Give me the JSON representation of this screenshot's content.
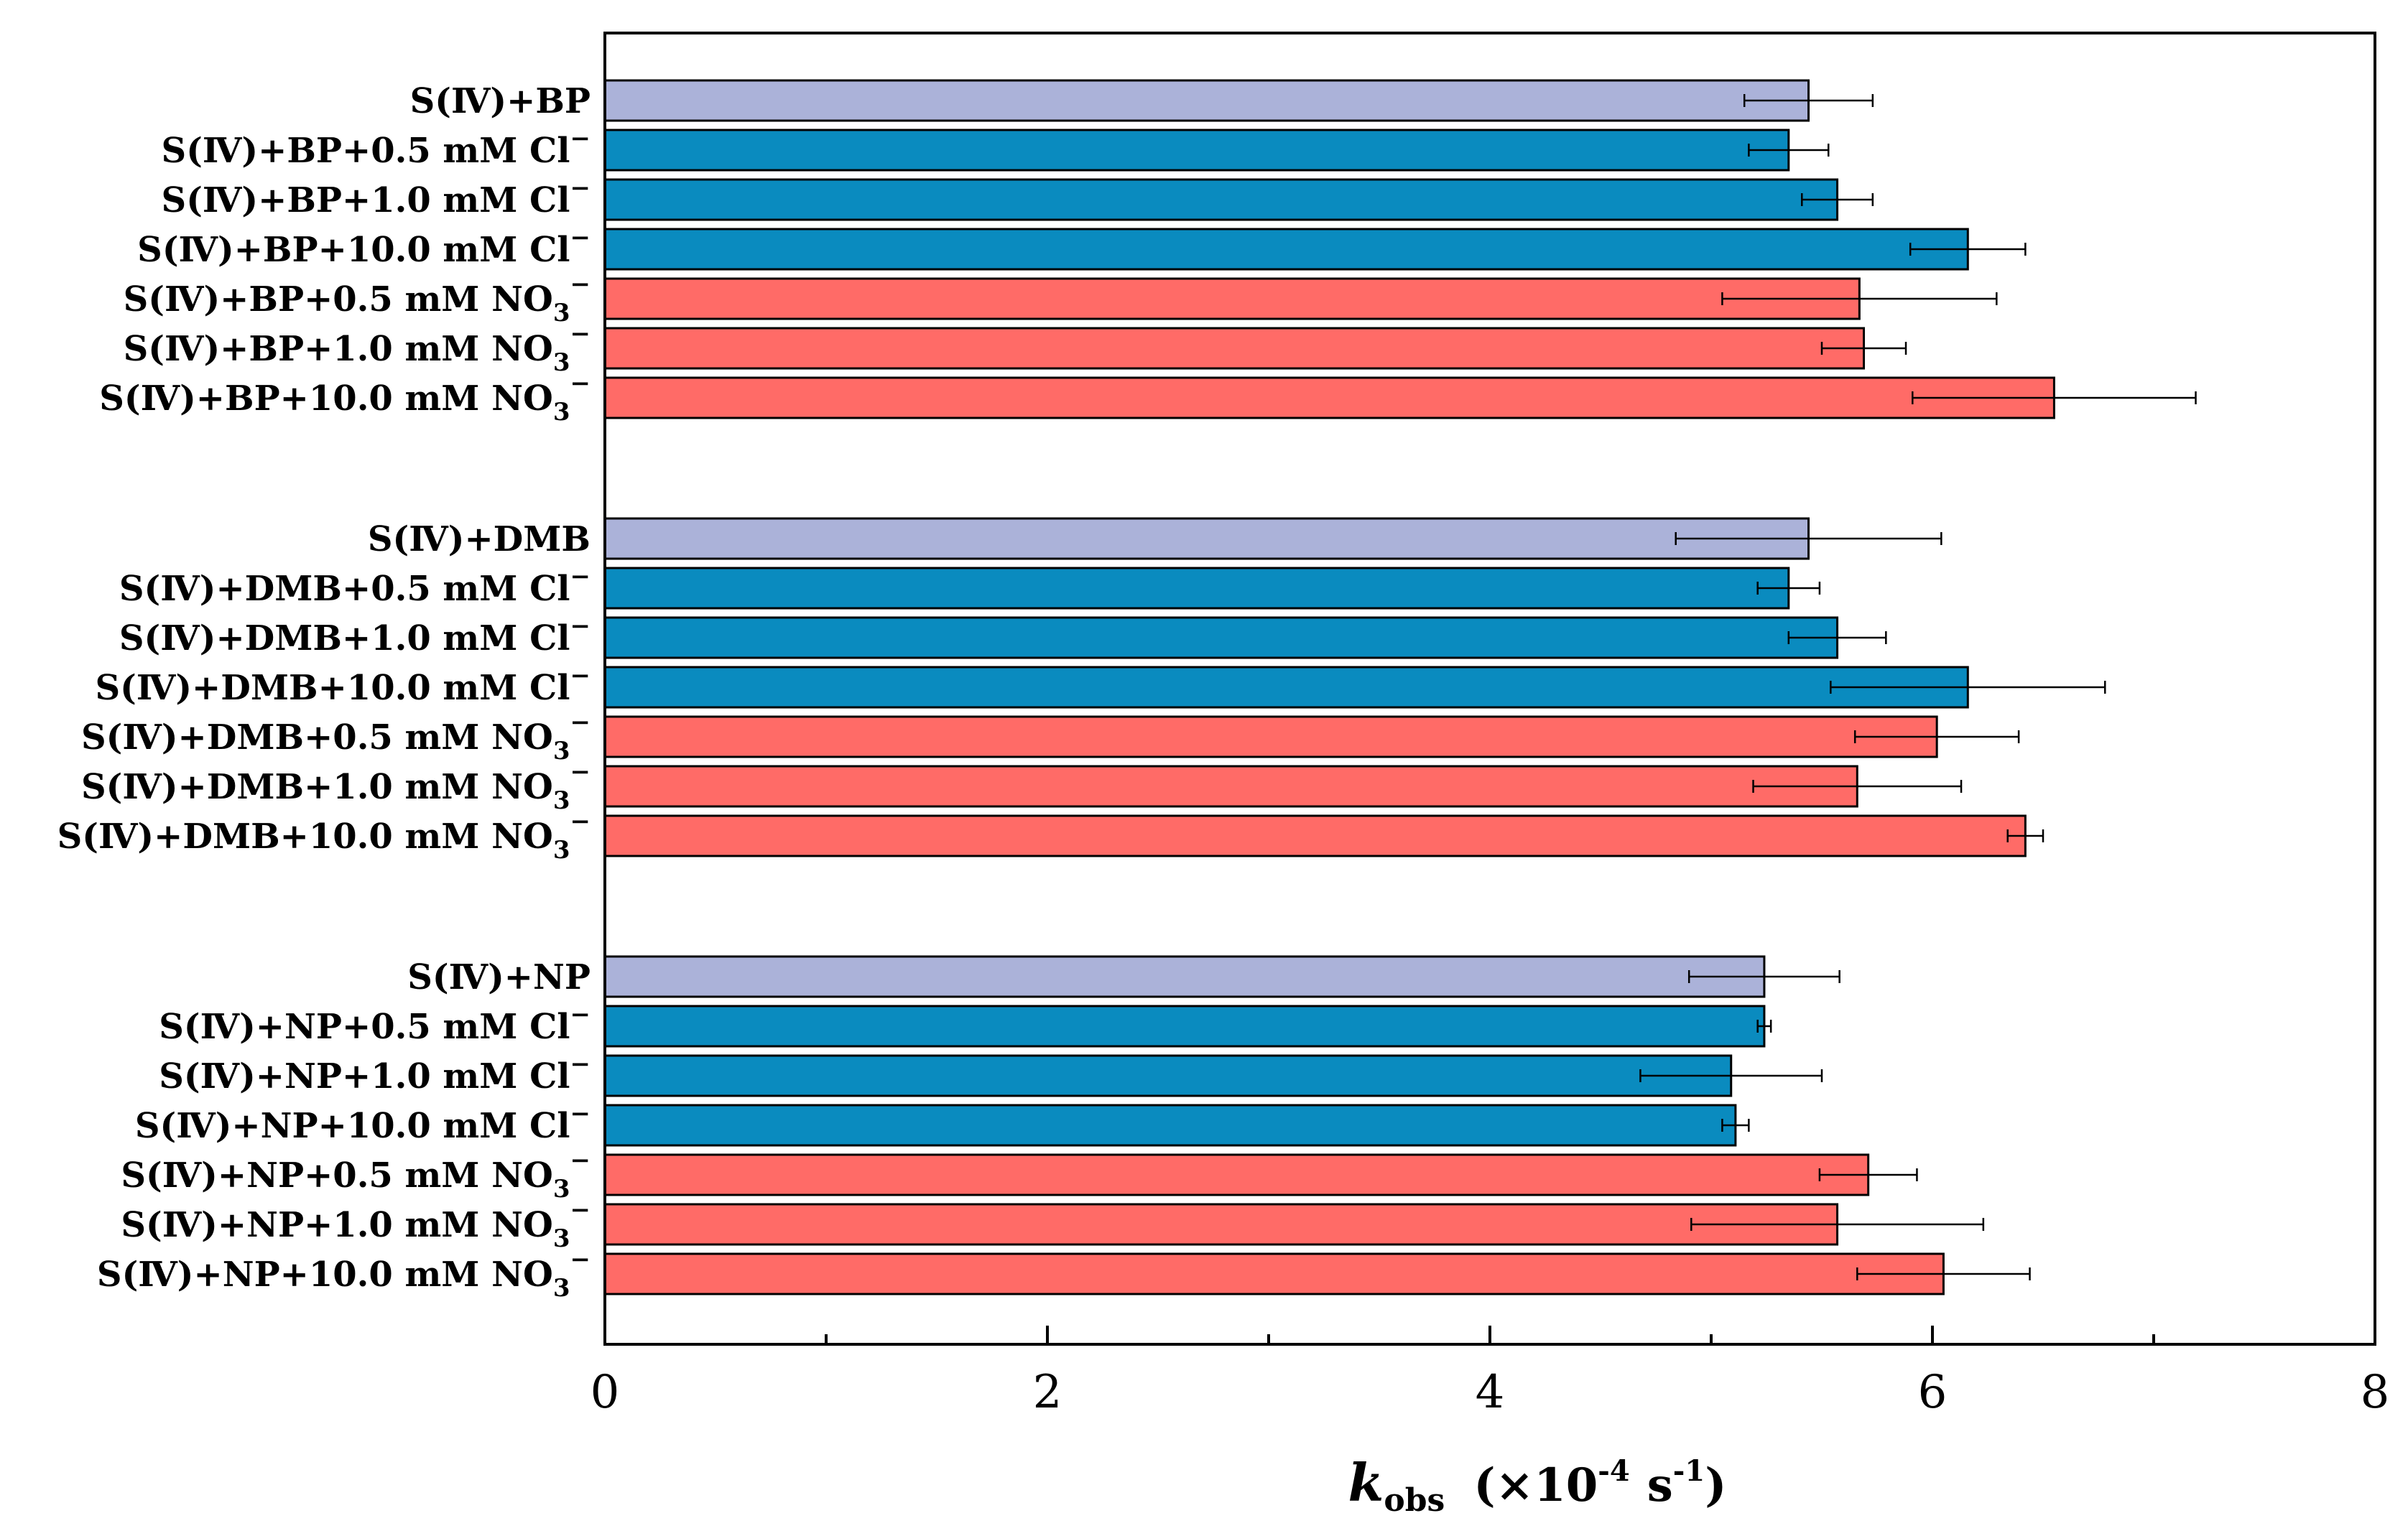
{
  "chart_data": {
    "type": "bar",
    "orientation": "horizontal",
    "title": "",
    "xlabel": {
      "symbol": "k",
      "subscript": "obs",
      "prefix": "(×10",
      "exponent": "-4",
      "unit": "s",
      "unit_exponent": "-1",
      "suffix": ")"
    },
    "ylabel": "",
    "xlim": [
      0,
      8
    ],
    "x_ticks": [
      0,
      2,
      4,
      6,
      8
    ],
    "x_tick_labels": [
      "0",
      "2",
      "4",
      "6",
      "8"
    ],
    "x_minor_ticks": [
      1,
      3,
      5,
      7
    ],
    "grid": false,
    "legend": "none",
    "groups": [
      {
        "name": "BP",
        "bars": [
          {
            "label": "S(Ⅳ)+BP",
            "ion": "",
            "value": 5.44,
            "error": 0.29,
            "series": "control"
          },
          {
            "label": "S(Ⅳ)+BP+0.5 mM Cl",
            "ion": "-",
            "value": 5.35,
            "error": 0.18,
            "series": "chloride"
          },
          {
            "label": "S(Ⅳ)+BP+1.0 mM Cl",
            "ion": "-",
            "value": 5.57,
            "error": 0.16,
            "series": "chloride"
          },
          {
            "label": "S(Ⅳ)+BP+10.0 mM Cl",
            "ion": "-",
            "value": 6.16,
            "error": 0.26,
            "series": "chloride"
          },
          {
            "label": "S(Ⅳ)+BP+0.5 mM NO",
            "ion": "3-",
            "value": 5.67,
            "error": 0.62,
            "series": "nitrate"
          },
          {
            "label": "S(Ⅳ)+BP+1.0 mM NO",
            "ion": "3-",
            "value": 5.69,
            "error": 0.19,
            "series": "nitrate"
          },
          {
            "label": "S(Ⅳ)+BP+10.0 mM NO",
            "ion": "3-",
            "value": 6.55,
            "error": 0.64,
            "series": "nitrate"
          }
        ]
      },
      {
        "name": "DMB",
        "bars": [
          {
            "label": "S(Ⅳ)+DMB",
            "ion": "",
            "value": 5.44,
            "error": 0.6,
            "series": "control"
          },
          {
            "label": "S(Ⅳ)+DMB+0.5 mM Cl",
            "ion": "-",
            "value": 5.35,
            "error": 0.14,
            "series": "chloride"
          },
          {
            "label": "S(Ⅳ)+DMB+1.0 mM Cl",
            "ion": "-",
            "value": 5.57,
            "error": 0.22,
            "series": "chloride"
          },
          {
            "label": "S(Ⅳ)+DMB+10.0 mM Cl",
            "ion": "-",
            "value": 6.16,
            "error": 0.62,
            "series": "chloride"
          },
          {
            "label": "S(Ⅳ)+DMB+0.5 mM NO",
            "ion": "3-",
            "value": 6.02,
            "error": 0.37,
            "series": "nitrate"
          },
          {
            "label": "S(Ⅳ)+DMB+1.0 mM NO",
            "ion": "3-",
            "value": 5.66,
            "error": 0.47,
            "series": "nitrate"
          },
          {
            "label": "S(Ⅳ)+DMB+10.0 mM NO",
            "ion": "3-",
            "value": 6.42,
            "error": 0.08,
            "series": "nitrate"
          }
        ]
      },
      {
        "name": "NP",
        "bars": [
          {
            "label": "S(Ⅳ)+NP",
            "ion": "",
            "value": 5.24,
            "error": 0.34,
            "series": "control"
          },
          {
            "label": "S(Ⅳ)+NP+0.5 mM Cl",
            "ion": "-",
            "value": 5.24,
            "error": 0.03,
            "series": "chloride"
          },
          {
            "label": "S(Ⅳ)+NP+1.0 mM Cl",
            "ion": "-",
            "value": 5.09,
            "error": 0.41,
            "series": "chloride"
          },
          {
            "label": "S(Ⅳ)+NP+10.0 mM Cl",
            "ion": "-",
            "value": 5.11,
            "error": 0.06,
            "series": "chloride"
          },
          {
            "label": "S(Ⅳ)+NP+0.5 mM NO",
            "ion": "3-",
            "value": 5.71,
            "error": 0.22,
            "series": "nitrate"
          },
          {
            "label": "S(Ⅳ)+NP+1.0 mM NO",
            "ion": "3-",
            "value": 5.57,
            "error": 0.66,
            "series": "nitrate"
          },
          {
            "label": "S(Ⅳ)+NP+10.0 mM NO",
            "ion": "3-",
            "value": 6.05,
            "error": 0.39,
            "series": "nitrate"
          }
        ]
      }
    ],
    "series_colors": {
      "control": "#abb2d9",
      "chloride": "#0a8bbf",
      "nitrate": "#ff6b67"
    },
    "bar_edge_color": "#000000",
    "error_bar_color": "#000000"
  }
}
